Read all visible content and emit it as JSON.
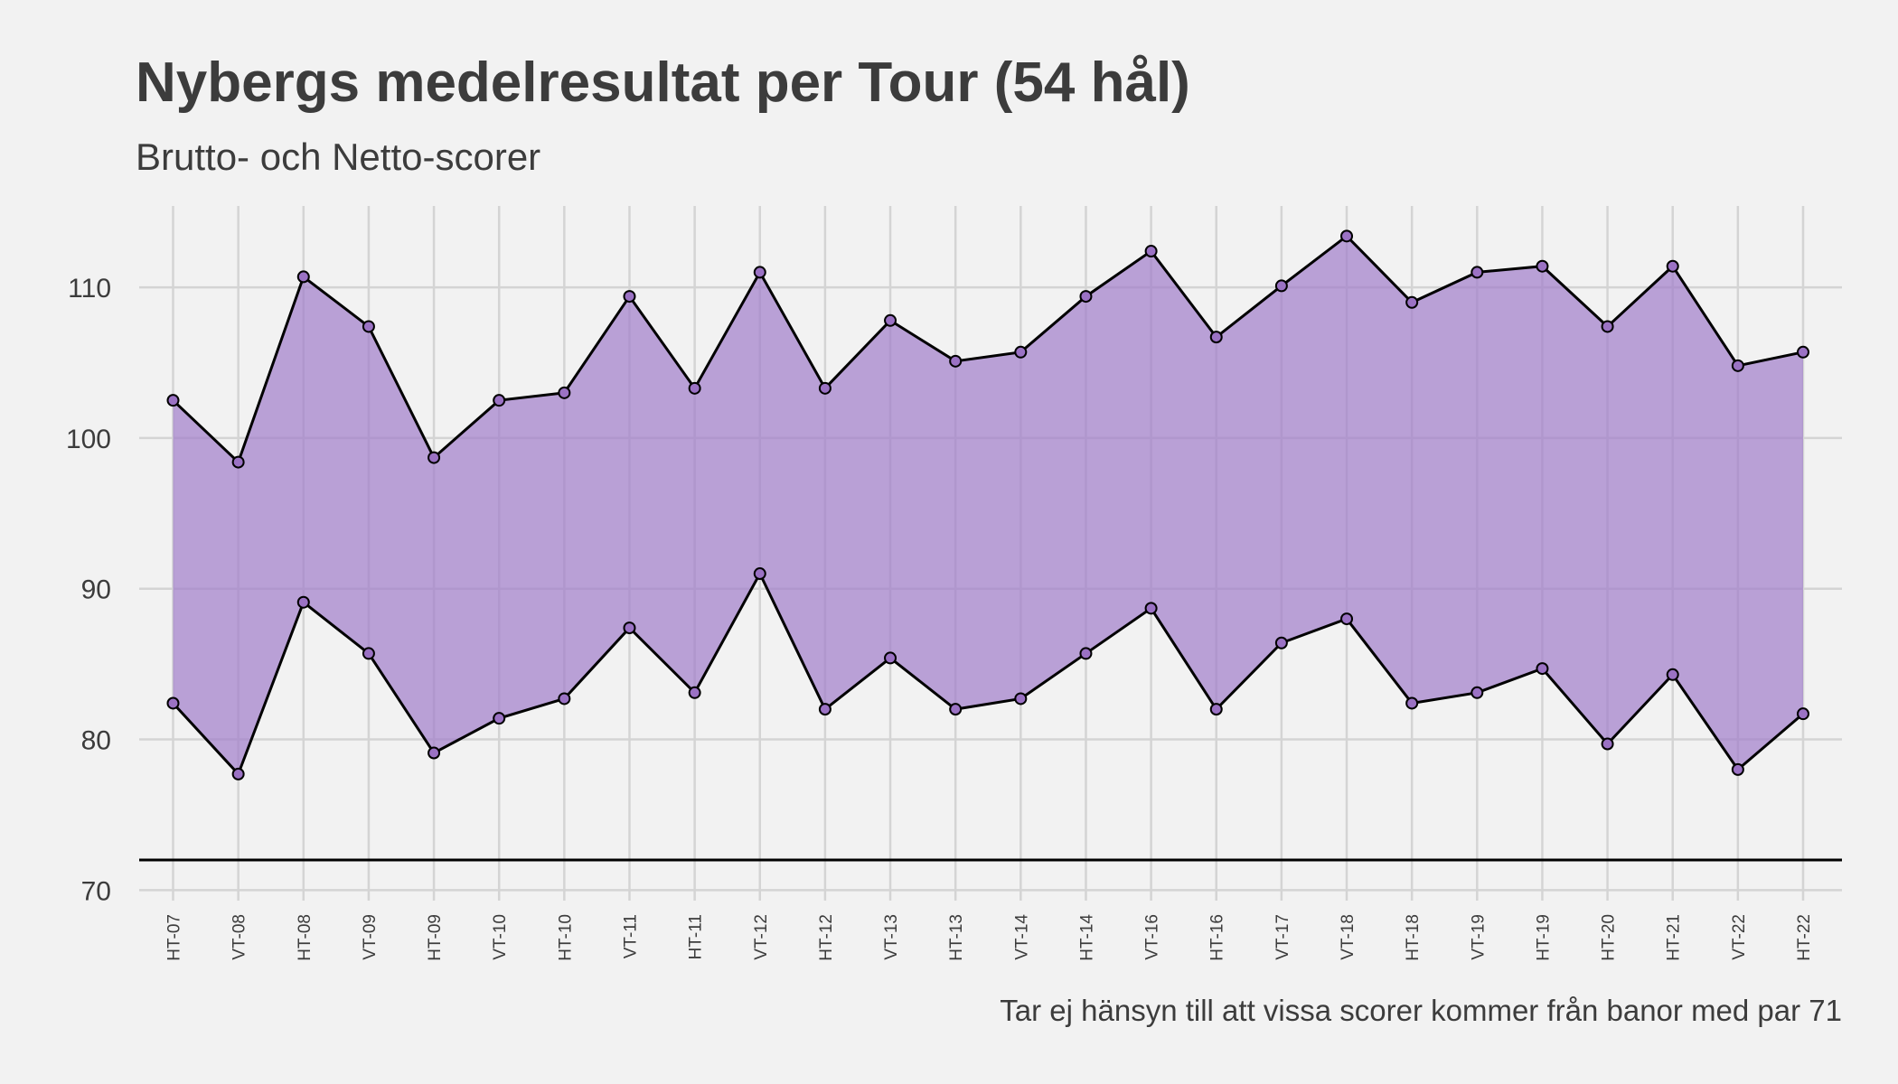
{
  "chart_data": {
    "type": "ribbon",
    "title": "Nybergs medelresultat per Tour (54 hål)",
    "subtitle": "Brutto- och Netto-scorer",
    "caption": "Tar ej hänsyn till att vissa scorer kommer från banor med par 71",
    "categories": [
      "HT-07",
      "VT-08",
      "HT-08",
      "VT-09",
      "HT-09",
      "VT-10",
      "HT-10",
      "VT-11",
      "HT-11",
      "VT-12",
      "HT-12",
      "VT-13",
      "HT-13",
      "VT-14",
      "HT-14",
      "VT-16",
      "HT-16",
      "VT-17",
      "VT-18",
      "HT-18",
      "VT-19",
      "HT-19",
      "HT-20",
      "HT-21",
      "VT-22",
      "HT-22"
    ],
    "series": [
      {
        "color": "#000000",
        "point_color": "#9b72c4",
        "values": [
          102.5,
          98.4,
          110.7,
          107.4,
          98.7,
          102.5,
          103.0,
          109.4,
          103.3,
          111.0,
          103.3,
          107.8,
          105.1,
          105.7,
          109.4,
          112.4,
          106.7,
          110.1,
          113.4,
          109.0,
          111.0,
          111.4,
          107.4,
          111.4,
          104.8,
          105.7
        ]
      },
      {
        "color": "#000000",
        "point_color": "#9b72c4",
        "values": [
          82.4,
          77.7,
          89.1,
          85.7,
          79.1,
          81.4,
          82.7,
          87.4,
          83.1,
          91.0,
          82.0,
          85.4,
          82.0,
          82.7,
          85.7,
          88.7,
          82.0,
          86.4,
          88.0,
          82.4,
          83.1,
          84.7,
          79.7,
          84.3,
          78.0,
          81.7
        ]
      }
    ],
    "fill_color": "#a27fca",
    "reference_line": 72,
    "reference_color": "#000000",
    "ylim": [
      69.3,
      115.4
    ],
    "yticks": [
      70,
      80,
      90,
      100,
      110
    ],
    "grid": true
  }
}
